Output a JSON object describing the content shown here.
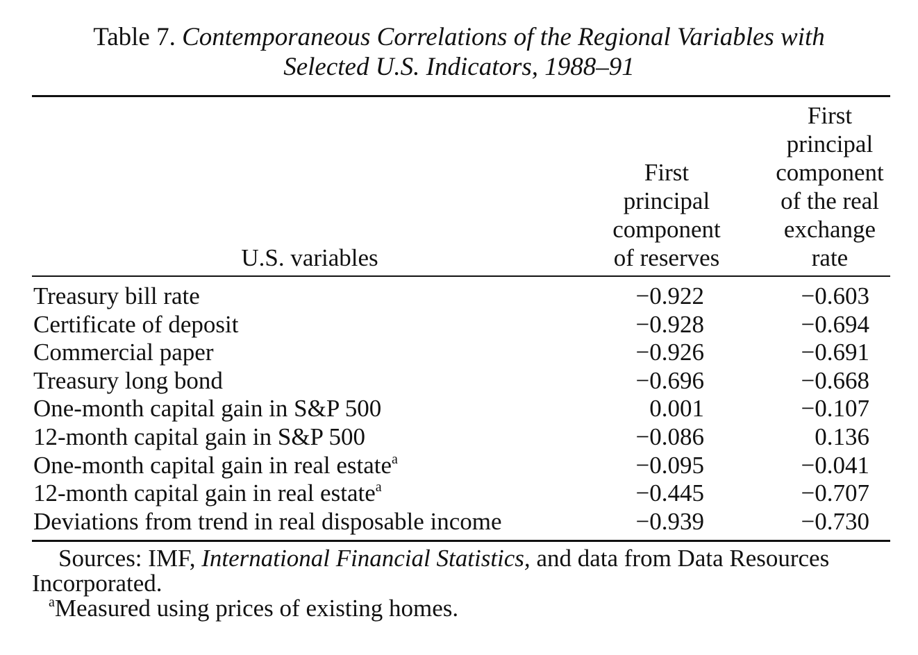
{
  "caption": {
    "label": "Table 7.",
    "title": "Contemporaneous Correlations of the Regional Variables with",
    "title_line2": "Selected U.S. Indicators, 1988–91"
  },
  "columns": {
    "stub": [
      "U.S. variables"
    ],
    "col1": [
      "First",
      "principal",
      "component",
      "of reserves"
    ],
    "col2": [
      "First",
      "principal",
      "component",
      "of the real",
      "exchange",
      "rate"
    ]
  },
  "rows": [
    {
      "label": "Treasury bill rate",
      "note": "",
      "reserves": "−0.922",
      "exchange": "−0.603"
    },
    {
      "label": "Certificate of deposit",
      "note": "",
      "reserves": "−0.928",
      "exchange": "−0.694"
    },
    {
      "label": "Commercial paper",
      "note": "",
      "reserves": "−0.926",
      "exchange": "−0.691"
    },
    {
      "label": "Treasury long bond",
      "note": "",
      "reserves": "−0.696",
      "exchange": "−0.668"
    },
    {
      "label": "One-month capital gain in S&P 500",
      "note": "",
      "reserves": "0.001",
      "exchange": "−0.107"
    },
    {
      "label": "12-month capital gain in S&P 500",
      "note": "",
      "reserves": "−0.086",
      "exchange": "0.136"
    },
    {
      "label": "One-month capital gain in real estate",
      "note": "a",
      "reserves": "−0.095",
      "exchange": "−0.041"
    },
    {
      "label": "12-month capital gain in real estate",
      "note": "a",
      "reserves": "−0.445",
      "exchange": "−0.707"
    },
    {
      "label": "Deviations from trend in real disposable income",
      "note": "",
      "reserves": "−0.939",
      "exchange": "−0.730"
    }
  ],
  "notes": {
    "sources_prefix": "Sources: IMF,",
    "sources_italic": "International Financial Statistics,",
    "sources_suffix": "and data from Data Resources Incorporated.",
    "footnote_mark": "a",
    "footnote_text": "Measured using prices of existing homes."
  }
}
